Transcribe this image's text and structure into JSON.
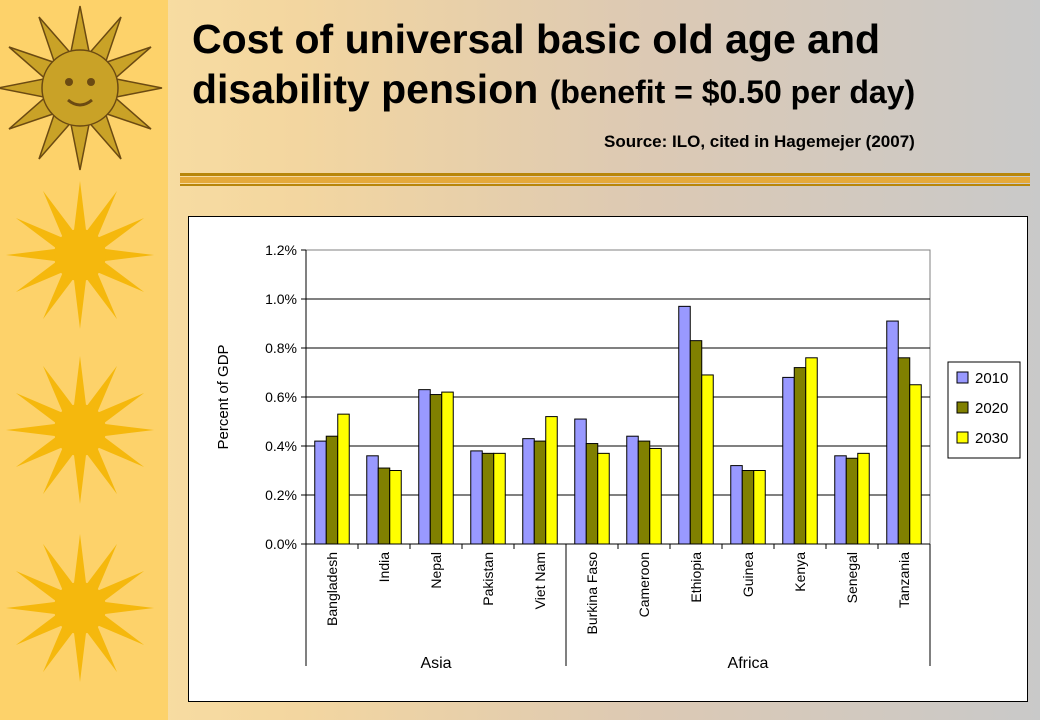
{
  "slide": {
    "title_main": "Cost of universal basic old age and disability pension",
    "title_sub": "(benefit = $0.50 per day)",
    "source": "Source: ILO, cited in Hagemejer (2007)"
  },
  "chart_data": {
    "type": "bar",
    "title": "",
    "xlabel": "",
    "ylabel": "Percent of GDP",
    "ylim": [
      0,
      1.2
    ],
    "yticks": [
      "0.0%",
      "0.2%",
      "0.4%",
      "0.6%",
      "0.8%",
      "1.0%",
      "1.2%"
    ],
    "grid": true,
    "legend_position": "right",
    "categories": [
      "Bangladesh",
      "India",
      "Nepal",
      "Pakistan",
      "Viet Nam",
      "Burkina Faso",
      "Cameroon",
      "Ethiopia",
      "Guinea",
      "Kenya",
      "Senegal",
      "Tanzania"
    ],
    "groups": [
      {
        "label": "Asia",
        "categories": [
          "Bangladesh",
          "India",
          "Nepal",
          "Pakistan",
          "Viet Nam"
        ]
      },
      {
        "label": "Africa",
        "categories": [
          "Burkina Faso",
          "Cameroon",
          "Ethiopia",
          "Guinea",
          "Kenya",
          "Senegal",
          "Tanzania"
        ]
      }
    ],
    "series": [
      {
        "name": "2010",
        "color": "#9999ff",
        "values": [
          0.42,
          0.36,
          0.63,
          0.38,
          0.43,
          0.51,
          0.44,
          0.97,
          0.32,
          0.68,
          0.36,
          0.91
        ]
      },
      {
        "name": "2020",
        "color": "#808000",
        "values": [
          0.44,
          0.31,
          0.61,
          0.37,
          0.42,
          0.41,
          0.42,
          0.83,
          0.3,
          0.72,
          0.35,
          0.76
        ]
      },
      {
        "name": "2030",
        "color": "#ffff00",
        "values": [
          0.53,
          0.3,
          0.62,
          0.37,
          0.52,
          0.37,
          0.39,
          0.69,
          0.3,
          0.76,
          0.37,
          0.65
        ]
      }
    ]
  }
}
